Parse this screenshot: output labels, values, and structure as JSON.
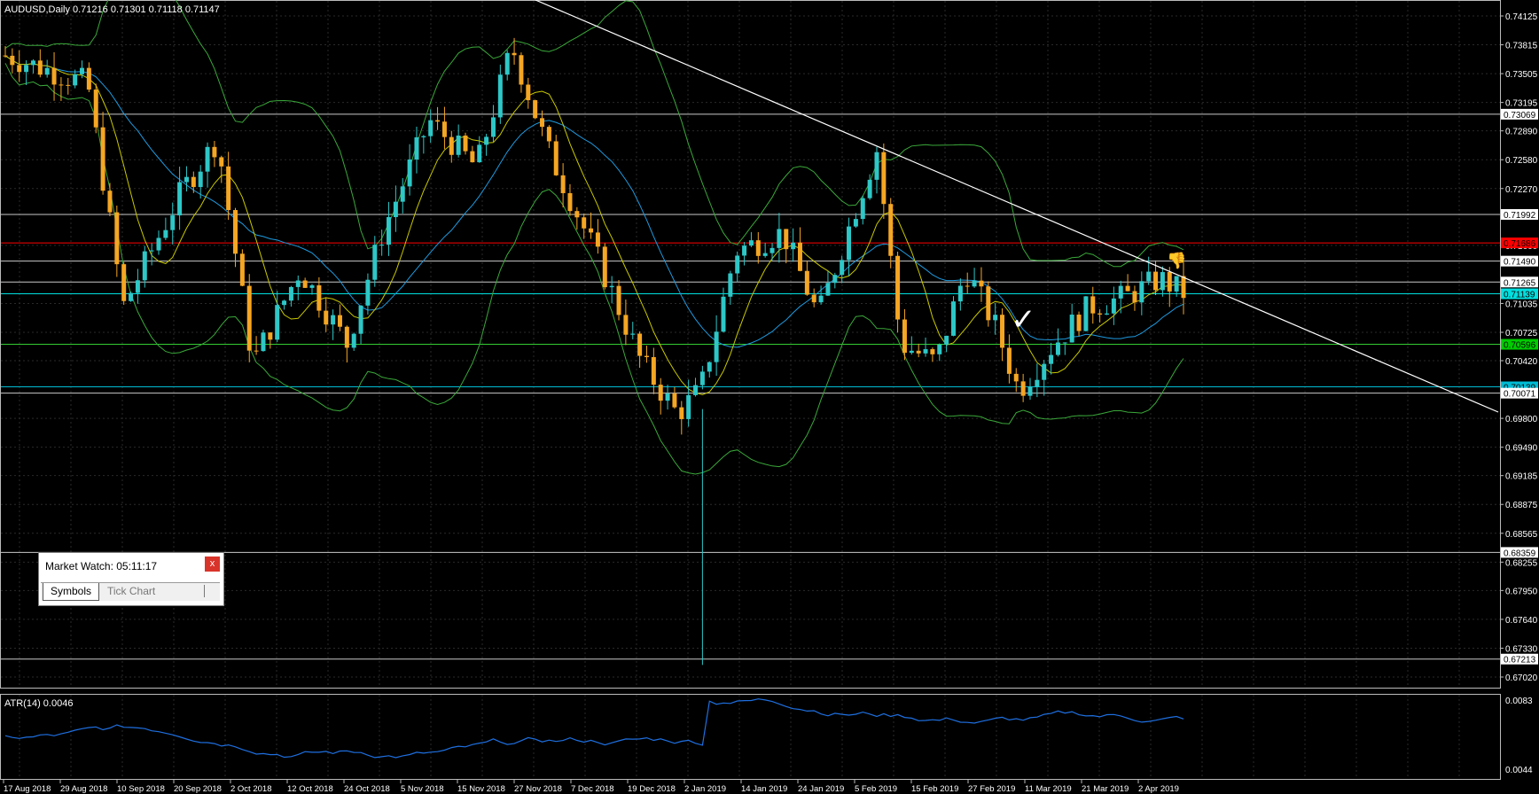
{
  "chart": {
    "symbol_header": "AUDUSD,Daily  0.71216 0.71301 0.71118 0.71147",
    "indicator_header": "ATR(14) 0.0046",
    "price_axis_labels": [
      "0.74125",
      "0.73815",
      "0.73505",
      "0.73195",
      "0.72890",
      "0.72580",
      "0.72270",
      "0.71660",
      "0.71035",
      "0.70725",
      "0.70420",
      "0.69800",
      "0.69490",
      "0.69185",
      "0.68875",
      "0.68565",
      "0.68255",
      "0.67950",
      "0.67640",
      "0.67330",
      "0.67020"
    ],
    "level_labels": [
      {
        "text": "0.73069",
        "bg": "#ffffff",
        "fg": "#000000",
        "line": "#c8c8c8",
        "price": 0.73069
      },
      {
        "text": "0.71992",
        "bg": "#ffffff",
        "fg": "#000000",
        "line": "#c8c8c8",
        "price": 0.71992
      },
      {
        "text": "0.71686",
        "bg": "#ff0000",
        "fg": "#000000",
        "line": "#ff0000",
        "price": 0.71686
      },
      {
        "text": "0.71490",
        "bg": "#ffffff",
        "fg": "#000000",
        "line": "#c8c8c8",
        "price": 0.7149
      },
      {
        "text": "0.71265",
        "bg": "#ffffff",
        "fg": "#000000",
        "line": "#c8c8c8",
        "price": 0.71265
      },
      {
        "text": "0.71139",
        "bg": "#00e0e0",
        "fg": "#000000",
        "line": "#00e0e0",
        "price": 0.71139
      },
      {
        "text": "0.70596",
        "bg": "#00cc00",
        "fg": "#000000",
        "line": "#33cc33",
        "price": 0.70596
      },
      {
        "text": "0.70139",
        "bg": "#00bcd4",
        "fg": "#000000",
        "line": "#00bcd4",
        "price": 0.70139
      },
      {
        "text": "0.70071",
        "bg": "#ffffff",
        "fg": "#000000",
        "line": "#c8c8c8",
        "price": 0.70071
      },
      {
        "text": "0.68359",
        "bg": "#ffffff",
        "fg": "#000000",
        "line": "#c8c8c8",
        "price": 0.68359
      },
      {
        "text": "0.67213",
        "bg": "#ffffff",
        "fg": "#000000",
        "line": "#c8c8c8",
        "price": 0.67213
      }
    ],
    "atr_axis_labels": [
      "0.0083",
      "0.0044"
    ],
    "date_labels": [
      "17 Aug 2018",
      "29 Aug 2018",
      "10 Sep 2018",
      "20 Sep 2018",
      "2 Oct 2018",
      "12 Oct 2018",
      "24 Oct 2018",
      "5 Nov 2018",
      "15 Nov 2018",
      "27 Nov 2018",
      "7 Dec 2018",
      "19 Dec 2018",
      "2 Jan 2019",
      "14 Jan 2019",
      "24 Jan 2019",
      "5 Feb 2019",
      "15 Feb 2019",
      "27 Feb 2019",
      "11 Mar 2019",
      "21 Mar 2019",
      "2 Apr 2019"
    ],
    "colors": {
      "bull": "#2ec7c7",
      "bear": "#f5a623",
      "grid": "#2a2a2a",
      "trendline": "#ffffff",
      "bb": "#3aa83a",
      "ma_fast": "#c8c800",
      "ma_slow": "#1e9adf",
      "atr": "#1e6fe0"
    }
  },
  "market_watch": {
    "title": "Market Watch: 05:11:17",
    "close_label": "x",
    "tabs": [
      "Symbols",
      "Tick Chart"
    ]
  }
}
